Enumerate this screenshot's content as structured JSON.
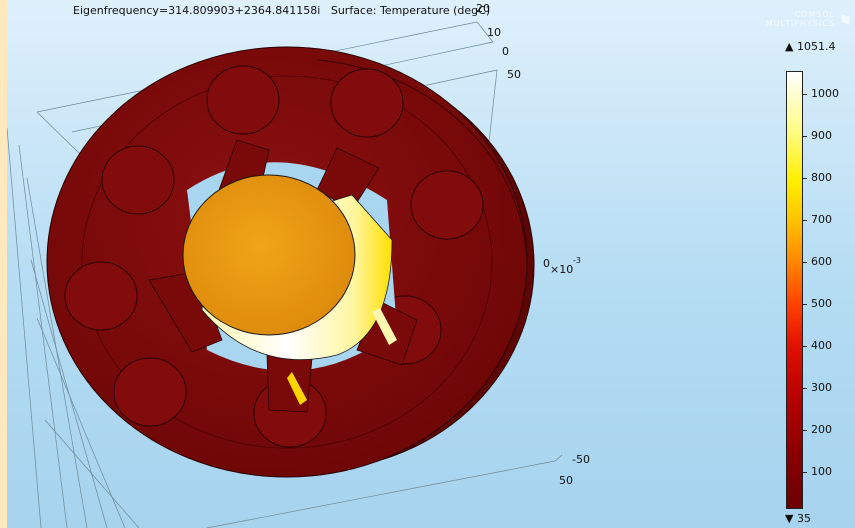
{
  "plot": {
    "title": "Eigenfrequency=314.809903+2364.841158i   Surface: Temperature (degC)"
  },
  "axes": {
    "labels": [
      {
        "id": "z20",
        "text": "20"
      },
      {
        "id": "z10",
        "text": "10"
      },
      {
        "id": "z0",
        "text": "0"
      },
      {
        "id": "y50",
        "text": "50"
      },
      {
        "id": "x0",
        "text": "0"
      },
      {
        "id": "xscale",
        "text": "×10"
      },
      {
        "id": "xexp",
        "text": "-3"
      },
      {
        "id": "yneg50",
        "text": "-50"
      },
      {
        "id": "x50",
        "text": "50"
      }
    ]
  },
  "logo": {
    "line1": "COMSOL",
    "line2": "MULTIPHYSICS"
  },
  "colorbar": {
    "max_label": "▲ 1051.4",
    "min_label": "▼ 35",
    "ticks": [
      "1000",
      "900",
      "800",
      "700",
      "600",
      "500",
      "400",
      "300",
      "200",
      "100"
    ],
    "colors": {
      "hot": "#ffffff",
      "mid": "#ffc300",
      "cold": "#6b0000"
    }
  },
  "geometry_colors": {
    "outer_ring": "#7f0a0a",
    "outer_ring_dark": "#5e0505",
    "inner_cylinder": "#e89a12",
    "inner_side_hot": "#ffffe0"
  }
}
